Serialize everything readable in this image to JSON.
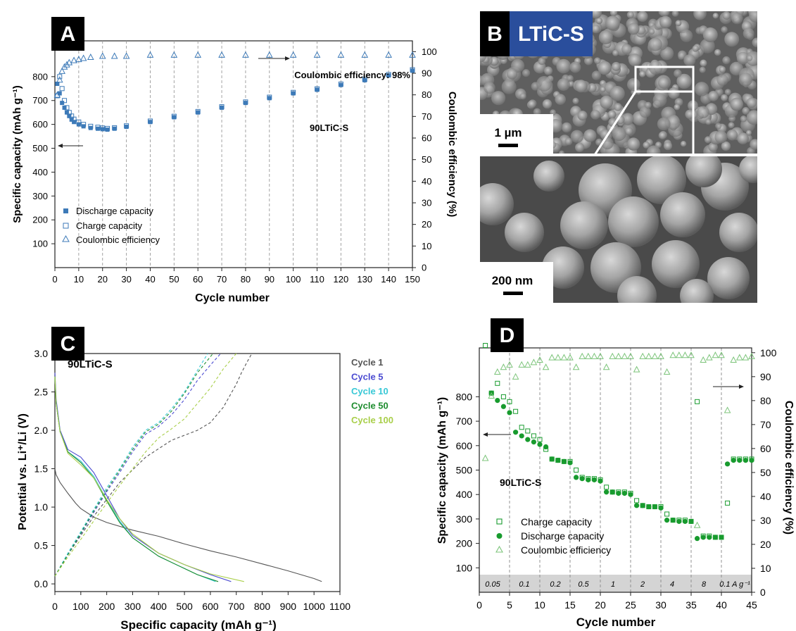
{
  "panels": {
    "A": {
      "letter": "A"
    },
    "B": {
      "letter": "B",
      "title": "LTiC-S",
      "scale_top": "1 µm",
      "scale_bottom": "200 nm"
    },
    "C": {
      "letter": "C"
    },
    "D": {
      "letter": "D"
    }
  },
  "colors": {
    "blue": "#3d7ab8",
    "green": "#189b2e",
    "green_light": "#7cc47a",
    "grey_band": "#d4d4d4",
    "panel_b_title_bg": "#2a4e9c",
    "cycle1": "#555555",
    "cycle5": "#4b4bd1",
    "cycle10": "#38c8d6",
    "cycle50": "#1d8c2e",
    "cycle100": "#a9cf4a"
  },
  "chart_data": [
    {
      "id": "A",
      "type": "scatter",
      "xlabel": "Cycle number",
      "ylabel": "Specific capacity (mAh g⁻¹)",
      "y2label": "Coulombic efficiency (%)",
      "xlim": [
        0,
        150
      ],
      "ylim": [
        0,
        950
      ],
      "y2lim": [
        0,
        105
      ],
      "xticks": [
        0,
        10,
        20,
        30,
        40,
        50,
        60,
        70,
        80,
        90,
        100,
        110,
        120,
        130,
        140,
        150
      ],
      "yticks": [
        100,
        200,
        300,
        400,
        500,
        600,
        700,
        800
      ],
      "y2ticks": [
        0,
        10,
        20,
        30,
        40,
        50,
        60,
        70,
        80,
        90,
        100
      ],
      "annotations": [
        "Coulombic efficiency: 98%",
        "90LTiC-S"
      ],
      "legend": {
        "placement": "lower-left",
        "entries": [
          "Discharge capacity",
          "Charge capacity",
          "Coulombic efficiency"
        ]
      },
      "series": [
        {
          "name": "Discharge capacity",
          "marker": "square-filled",
          "x": [
            1,
            2,
            3,
            4,
            5,
            6,
            7,
            8,
            10,
            12,
            15,
            18,
            20,
            22,
            25,
            30,
            40,
            50,
            60,
            70,
            80,
            90,
            100,
            110,
            120,
            130,
            140,
            150
          ],
          "values": [
            770,
            730,
            690,
            670,
            650,
            635,
            620,
            610,
            600,
            592,
            585,
            582,
            580,
            578,
            582,
            590,
            610,
            630,
            650,
            670,
            690,
            710,
            730,
            745,
            765,
            785,
            805,
            825
          ]
        },
        {
          "name": "Charge capacity",
          "marker": "square-open",
          "x": [
            1,
            2,
            3,
            4,
            5,
            6,
            7,
            8,
            10,
            12,
            15,
            18,
            20,
            22,
            25,
            30,
            40,
            50,
            60,
            70,
            80,
            90,
            100,
            110,
            120,
            130,
            140,
            150
          ],
          "values": [
            720,
            800,
            750,
            700,
            670,
            650,
            635,
            622,
            610,
            600,
            592,
            588,
            585,
            583,
            586,
            594,
            614,
            634,
            654,
            674,
            694,
            714,
            734,
            749,
            769,
            789,
            809,
            829
          ]
        },
        {
          "name": "Coulombic efficiency",
          "marker": "triangle-open",
          "x": [
            1,
            2,
            3,
            4,
            5,
            6,
            8,
            10,
            12,
            15,
            20,
            25,
            30,
            40,
            50,
            60,
            70,
            80,
            90,
            100,
            110,
            120,
            130,
            140,
            150
          ],
          "values": [
            80,
            87,
            91,
            93,
            94,
            95,
            96,
            96.5,
            97,
            97.5,
            98,
            98,
            98,
            98.5,
            98.5,
            98.5,
            98.5,
            98.5,
            98.5,
            98.5,
            98.5,
            98.5,
            98.5,
            98.5,
            98.5
          ]
        }
      ]
    },
    {
      "id": "C",
      "type": "line",
      "xlabel": "Specific capacity (mAh g⁻¹)",
      "ylabel": "Potential vs. Li⁺/Li (V)",
      "xlim": [
        0,
        1100
      ],
      "ylim": [
        -0.1,
        3.0
      ],
      "xticks": [
        0,
        100,
        200,
        300,
        400,
        500,
        600,
        700,
        800,
        900,
        1000,
        1100
      ],
      "yticks": [
        0.0,
        0.5,
        1.0,
        1.5,
        2.0,
        2.5,
        3.0
      ],
      "annotations": [
        "90LTiC-S"
      ],
      "legend": {
        "placement": "top-right",
        "entries": [
          "Cycle 1",
          "Cycle 5",
          "Cycle 10",
          "Cycle 50",
          "Cycle 100"
        ]
      },
      "series": [
        {
          "name": "Cycle 1",
          "discharge": {
            "x": [
              0,
              5,
              20,
              50,
              80,
              100,
              150,
              200,
              300,
              400,
              500,
              600,
              700,
              800,
              900,
              1000,
              1030
            ],
            "y": [
              1.5,
              1.42,
              1.32,
              1.18,
              1.05,
              0.98,
              0.87,
              0.8,
              0.7,
              0.62,
              0.52,
              0.43,
              0.35,
              0.26,
              0.17,
              0.07,
              0.03
            ]
          },
          "charge": {
            "x": [
              0,
              50,
              150,
              250,
              350,
              450,
              550,
              600,
              650,
              700,
              720,
              740,
              760
            ],
            "y": [
              0.1,
              0.38,
              0.88,
              1.32,
              1.65,
              1.87,
              2.0,
              2.1,
              2.3,
              2.6,
              2.75,
              2.88,
              3.0
            ]
          }
        },
        {
          "name": "Cycle 5",
          "discharge": {
            "x": [
              0,
              5,
              20,
              50,
              100,
              150,
              200,
              250,
              300,
              400,
              500,
              600,
              680
            ],
            "y": [
              2.75,
              2.4,
              2.0,
              1.75,
              1.65,
              1.45,
              1.15,
              0.85,
              0.63,
              0.4,
              0.25,
              0.12,
              0.03
            ]
          },
          "charge": {
            "x": [
              0,
              50,
              100,
              150,
              200,
              250,
              300,
              350,
              400,
              450,
              500,
              550,
              600,
              640
            ],
            "y": [
              0.1,
              0.38,
              0.65,
              0.93,
              1.2,
              1.45,
              1.72,
              1.95,
              2.05,
              2.2,
              2.4,
              2.65,
              2.85,
              3.0
            ]
          }
        },
        {
          "name": "Cycle 10",
          "discharge": {
            "x": [
              0,
              5,
              20,
              50,
              100,
              150,
              200,
              250,
              300,
              400,
              500,
              550,
              620
            ],
            "y": [
              2.7,
              2.35,
              1.98,
              1.72,
              1.6,
              1.4,
              1.1,
              0.82,
              0.6,
              0.36,
              0.2,
              0.12,
              0.03
            ]
          },
          "charge": {
            "x": [
              0,
              50,
              100,
              150,
              200,
              250,
              300,
              350,
              400,
              450,
              500,
              550,
              590
            ],
            "y": [
              0.1,
              0.4,
              0.68,
              0.97,
              1.25,
              1.5,
              1.78,
              2.0,
              2.1,
              2.28,
              2.5,
              2.78,
              3.0
            ]
          }
        },
        {
          "name": "Cycle 50",
          "discharge": {
            "x": [
              0,
              5,
              20,
              50,
              100,
              150,
              200,
              250,
              300,
              400,
              500,
              550,
              630
            ],
            "y": [
              2.7,
              2.35,
              1.98,
              1.72,
              1.58,
              1.38,
              1.08,
              0.8,
              0.6,
              0.36,
              0.2,
              0.12,
              0.03
            ]
          },
          "charge": {
            "x": [
              0,
              50,
              100,
              150,
              200,
              250,
              300,
              350,
              400,
              450,
              500,
              550,
              610
            ],
            "y": [
              0.1,
              0.38,
              0.66,
              0.95,
              1.22,
              1.48,
              1.75,
              1.98,
              2.08,
              2.25,
              2.48,
              2.75,
              3.0
            ]
          }
        },
        {
          "name": "Cycle 100",
          "discharge": {
            "x": [
              0,
              5,
              20,
              50,
              100,
              150,
              200,
              250,
              300,
              400,
              500,
              600,
              730
            ],
            "y": [
              2.7,
              2.35,
              1.98,
              1.7,
              1.55,
              1.38,
              1.1,
              0.85,
              0.65,
              0.4,
              0.25,
              0.13,
              0.03
            ]
          },
          "charge": {
            "x": [
              0,
              50,
              100,
              150,
              200,
              250,
              300,
              350,
              400,
              450,
              500,
              550,
              600,
              650,
              700
            ],
            "y": [
              0.1,
              0.35,
              0.58,
              0.82,
              1.05,
              1.28,
              1.5,
              1.72,
              1.9,
              2.02,
              2.15,
              2.35,
              2.55,
              2.8,
              3.0
            ]
          }
        }
      ]
    },
    {
      "id": "D",
      "type": "scatter",
      "xlabel": "Cycle number",
      "ylabel": "Specific capacity  (mAh g⁻¹)",
      "y2label": "Coulombic efficiency (%)",
      "xlim": [
        0,
        45
      ],
      "ylim": [
        0,
        1000
      ],
      "y2lim": [
        0,
        102
      ],
      "xticks": [
        0,
        5,
        10,
        15,
        20,
        25,
        30,
        35,
        40,
        45
      ],
      "yticks": [
        100,
        200,
        300,
        400,
        500,
        600,
        700,
        800
      ],
      "y2ticks": [
        0,
        10,
        20,
        30,
        40,
        50,
        60,
        70,
        80,
        90,
        100
      ],
      "annotations": [
        "90LTiC-S"
      ],
      "rate_labels": [
        "0.05",
        "0.1",
        "0.2",
        "0.5",
        "1",
        "2",
        "4",
        "8",
        "0.1 A g⁻¹"
      ],
      "rate_boundaries": [
        5,
        10,
        15,
        20,
        25,
        30,
        35,
        40
      ],
      "legend": {
        "placement": "lower-left",
        "entries": [
          "Charge capacity",
          "Discharge capacity",
          "Coulombic efficiency"
        ]
      },
      "series": [
        {
          "name": "Charge capacity",
          "marker": "square-open",
          "x": [
            1,
            2,
            3,
            4,
            5,
            6,
            7,
            8,
            9,
            10,
            11,
            12,
            13,
            14,
            15,
            16,
            17,
            18,
            19,
            20,
            21,
            22,
            23,
            24,
            25,
            26,
            27,
            28,
            29,
            30,
            31,
            32,
            33,
            34,
            35,
            36,
            37,
            38,
            39,
            40,
            41,
            42,
            43,
            44,
            45
          ],
          "values": [
            1010,
            815,
            855,
            800,
            780,
            740,
            675,
            660,
            640,
            625,
            585,
            545,
            540,
            535,
            535,
            500,
            470,
            465,
            465,
            460,
            430,
            410,
            410,
            410,
            405,
            375,
            355,
            350,
            350,
            350,
            320,
            295,
            295,
            295,
            290,
            780,
            230,
            230,
            225,
            225,
            365,
            545,
            545,
            545,
            545
          ]
        },
        {
          "name": "Discharge capacity",
          "marker": "circle-filled",
          "x": [
            2,
            3,
            4,
            5,
            6,
            7,
            8,
            9,
            10,
            11,
            12,
            13,
            14,
            15,
            16,
            17,
            18,
            19,
            20,
            21,
            22,
            23,
            24,
            25,
            26,
            27,
            28,
            29,
            30,
            31,
            32,
            33,
            34,
            35,
            36,
            37,
            38,
            39,
            40,
            41,
            42,
            43,
            44,
            45
          ],
          "values": [
            815,
            785,
            760,
            735,
            655,
            640,
            625,
            615,
            605,
            595,
            545,
            540,
            535,
            530,
            470,
            465,
            460,
            460,
            455,
            410,
            410,
            405,
            405,
            400,
            355,
            355,
            350,
            350,
            345,
            295,
            295,
            290,
            290,
            290,
            220,
            225,
            225,
            225,
            225,
            525,
            540,
            540,
            540,
            540
          ]
        },
        {
          "name": "Coulombic efficiency",
          "marker": "triangle-open",
          "x": [
            1,
            2,
            3,
            4,
            5,
            6,
            7,
            8,
            9,
            10,
            11,
            12,
            13,
            14,
            15,
            16,
            17,
            18,
            19,
            20,
            21,
            22,
            23,
            24,
            25,
            26,
            27,
            28,
            29,
            30,
            31,
            32,
            33,
            34,
            35,
            36,
            37,
            38,
            39,
            40,
            41,
            42,
            43,
            44,
            45
          ],
          "values": [
            56,
            82,
            92,
            94,
            95,
            90,
            95,
            95,
            96,
            97,
            94,
            98,
            98,
            98,
            98,
            94,
            98.5,
            98.5,
            98.5,
            98.5,
            94,
            98.5,
            98.5,
            98.5,
            98.5,
            93,
            98.5,
            98.5,
            98.5,
            98.5,
            92,
            99,
            99,
            99,
            99,
            28,
            97,
            98,
            99,
            99,
            76,
            97,
            98,
            98,
            98.5
          ]
        }
      ]
    }
  ]
}
